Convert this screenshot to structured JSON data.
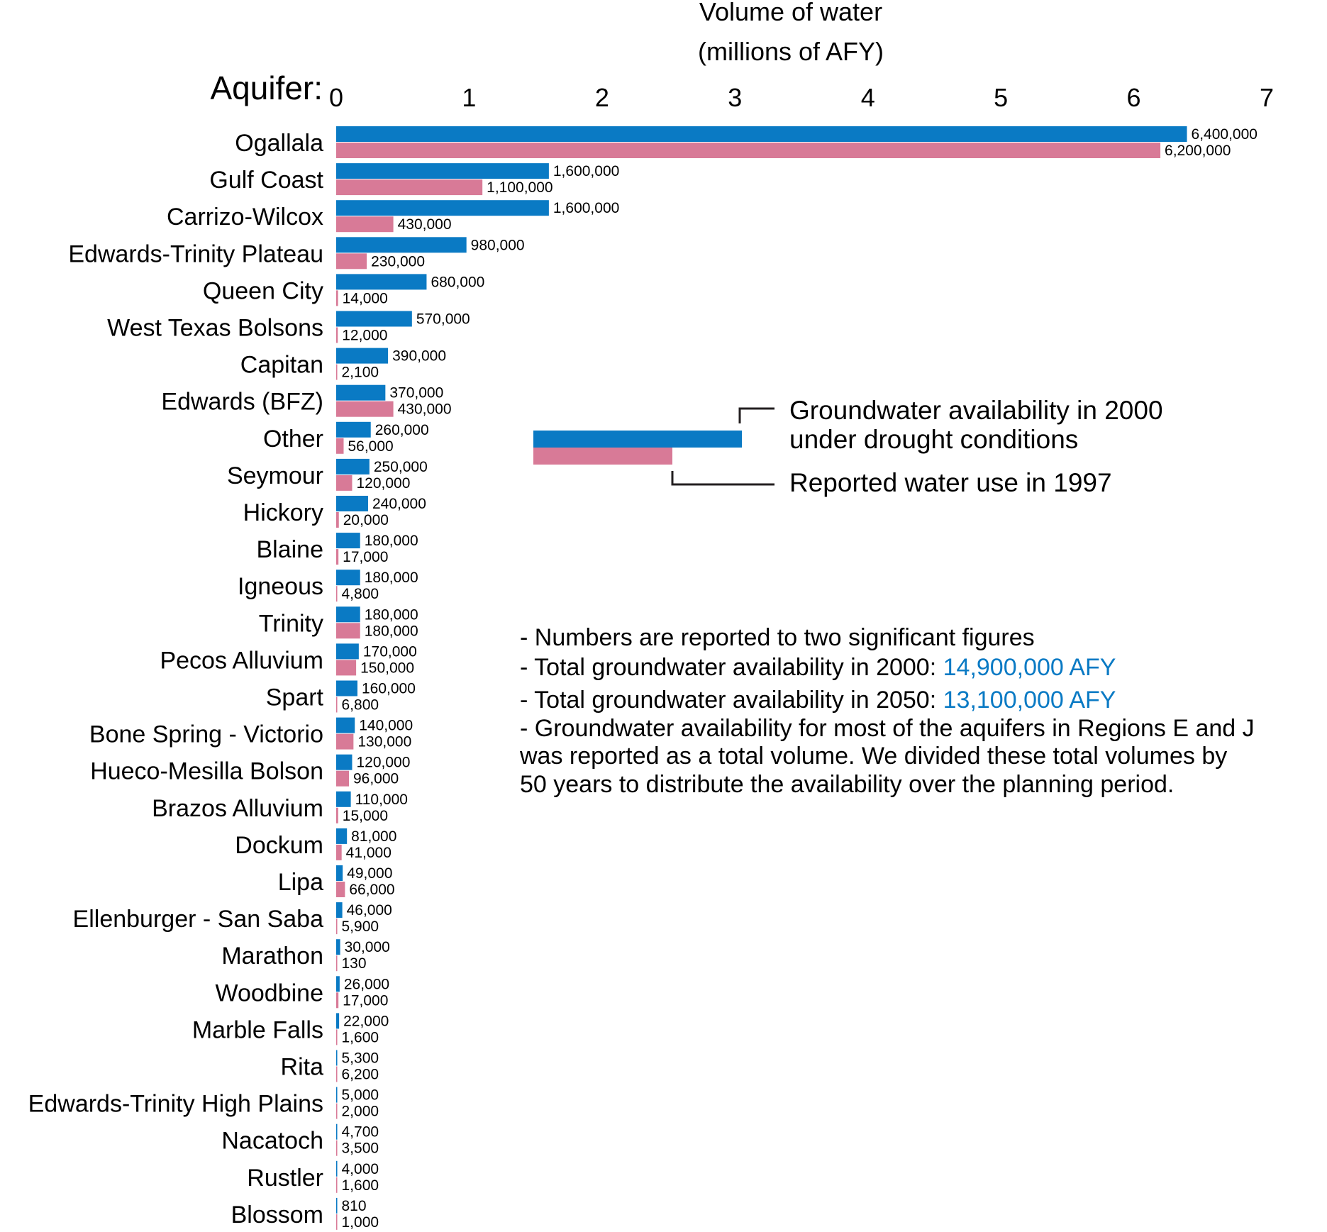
{
  "chart_data": {
    "type": "bar",
    "orientation": "horizontal",
    "xlabel": [
      "Volume of water",
      "(millions of AFY)"
    ],
    "category_heading": "Aquifer:",
    "xlim": [
      0,
      7
    ],
    "x_ticks": [
      {
        "value": 0,
        "label": "0"
      },
      {
        "value": 1,
        "label": "1"
      },
      {
        "value": 2,
        "label": "2"
      },
      {
        "value": 3,
        "label": "3"
      },
      {
        "value": 4,
        "label": "4"
      },
      {
        "value": 5,
        "label": "5"
      },
      {
        "value": 6,
        "label": "6"
      },
      {
        "value": 7,
        "label": "7"
      }
    ],
    "grid": false,
    "categories": [
      "Ogallala",
      "Gulf Coast",
      "Carrizo-Wilcox",
      "Edwards-Trinity Plateau",
      "Queen City",
      "West Texas Bolsons",
      "Capitan",
      "Edwards (BFZ)",
      "Other",
      "Seymour",
      "Hickory",
      "Blaine",
      "Igneous",
      "Trinity",
      "Pecos Alluvium",
      "Spart",
      "Bone Spring - Victorio",
      "Hueco-Mesilla Bolson",
      "Brazos Alluvium",
      "Dockum",
      "Lipa",
      "Ellenburger - San Saba",
      "Marathon",
      "Woodbine",
      "Marble Falls",
      "Rita",
      "Edwards-Trinity High Plains",
      "Nacatoch",
      "Rustler",
      "Blossom"
    ],
    "series": [
      {
        "name": "Groundwater availability in 2000 under drought conditions",
        "color": "#0a7ac4",
        "values": [
          6400000,
          1600000,
          1600000,
          980000,
          680000,
          570000,
          390000,
          370000,
          260000,
          250000,
          240000,
          180000,
          180000,
          180000,
          170000,
          160000,
          140000,
          120000,
          110000,
          81000,
          49000,
          46000,
          30000,
          26000,
          22000,
          5300,
          5000,
          4700,
          4000,
          810
        ],
        "labels": [
          "6,400,000",
          "1,600,000",
          "1,600,000",
          "980,000",
          "680,000",
          "570,000",
          "390,000",
          "370,000",
          "260,000",
          "250,000",
          "240,000",
          "180,000",
          "180,000",
          "180,000",
          "170,000",
          "160,000",
          "140,000",
          "120,000",
          "110,000",
          "81,000",
          "49,000",
          "46,000",
          "30,000",
          "26,000",
          "22,000",
          "5,300",
          "5,000",
          "4,700",
          "4,000",
          "810"
        ]
      },
      {
        "name": "Reported water use in 1997",
        "color": "#d87a97",
        "values": [
          6200000,
          1100000,
          430000,
          230000,
          14000,
          12000,
          2100,
          430000,
          56000,
          120000,
          20000,
          17000,
          4800,
          180000,
          150000,
          6800,
          130000,
          96000,
          15000,
          41000,
          66000,
          5900,
          130,
          17000,
          1600,
          6200,
          2000,
          3500,
          1600,
          1000
        ],
        "labels": [
          "6,200,000",
          "1,100,000",
          "430,000",
          "230,000",
          "14,000",
          "12,000",
          "2,100",
          "430,000",
          "56,000",
          "120,000",
          "20,000",
          "17,000",
          "4,800",
          "180,000",
          "150,000",
          "6,800",
          "130,000",
          "96,000",
          "15,000",
          "41,000",
          "66,000",
          "5,900",
          "130",
          "17,000",
          "1,600",
          "6,200",
          "2,000",
          "3,500",
          "1,600",
          "1,000"
        ]
      }
    ],
    "legend": {
      "placement": "right",
      "series_1_lines": [
        "Groundwater availability in 2000",
        "under drought conditions"
      ],
      "series_2_lines": [
        "Reported water use in 1997"
      ]
    },
    "notes": [
      {
        "text": "- Numbers are reported to two significant figures",
        "highlight": ""
      },
      {
        "text": "- Total groundwater availability in 2000: ",
        "highlight": "14,900,000 AFY"
      },
      {
        "text": "- Total groundwater availability in 2050: ",
        "highlight": "13,100,000 AFY"
      },
      {
        "text": "- Groundwater availability for most of the aquifers in Regions E and J",
        "highlight": ""
      },
      {
        "text": "  was reported as a total volume. We divided these total volumes by",
        "highlight": ""
      },
      {
        "text": "  50 years to distribute the availability over the planning period.",
        "highlight": ""
      }
    ],
    "highlight_color": "#0a7ac4"
  }
}
